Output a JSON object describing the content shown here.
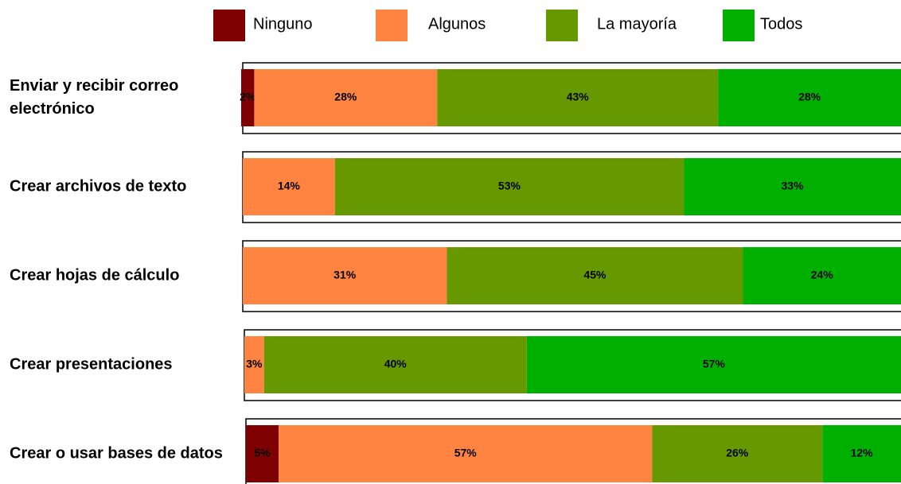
{
  "chart_data": {
    "type": "stacked-bar-horizontal",
    "categories": [
      "Enviar y recibir correo electrónico",
      "Crear archivos de texto",
      "Crear hojas de cálculo",
      "Crear presentaciones",
      "Crear o usar bases de datos"
    ],
    "series": [
      {
        "name": "Ninguno",
        "color": "#7f0000",
        "values": [
          2,
          null,
          null,
          null,
          5
        ],
        "value_labels": [
          "2%",
          null,
          null,
          null,
          "5%"
        ]
      },
      {
        "name": "Algunos",
        "color": "#ff8442",
        "values": [
          28,
          14,
          31,
          3,
          57
        ],
        "value_labels": [
          "28%",
          "14%",
          "31%",
          "3%",
          "57%"
        ]
      },
      {
        "name": "La mayoría",
        "color": "#669900",
        "values": [
          43,
          53,
          45,
          40,
          26
        ],
        "value_labels": [
          "43%",
          "53%",
          "45%",
          "40%",
          "26%"
        ]
      },
      {
        "name": "Todos",
        "color": "#00b000",
        "values": [
          28,
          33,
          24,
          57,
          12
        ],
        "value_labels": [
          "28%",
          "33%",
          "24%",
          "57%",
          "12%"
        ]
      }
    ]
  }
}
